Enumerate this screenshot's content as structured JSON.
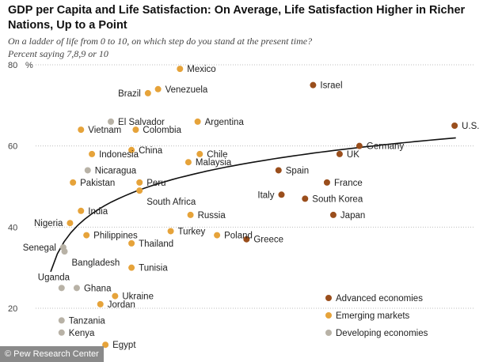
{
  "header": {
    "title": "GDP per Capita and Life Satisfaction: On Average, Life Satisfaction Higher in Richer Nations, Up to a Point",
    "subtitle": "On a ladder of life from 0 to 10, on which step do you stand at the present time? Percent saying 7,8,9 or 10"
  },
  "source": "© Pew Research Center",
  "colors": {
    "advanced": "#9a4e1c",
    "emerging": "#e6a33a",
    "developing": "#b8b2a6",
    "gridline": "#bdbdbd",
    "trendline": "#111111"
  },
  "chart_data": {
    "type": "scatter",
    "title": "GDP per Capita and Life Satisfaction: On Average, Life Satisfaction Higher in Richer Nations, Up to a Point",
    "ylabel": "On a ladder of life from 0 to 10, on which step do you stand at the present time? Percent saying 7,8,9 or 10",
    "y_unit": "%",
    "ylim": [
      16,
      82
    ],
    "y_ticks": [
      20,
      40,
      60,
      80
    ],
    "x_axis_shown": false,
    "x_scale": "log",
    "x_note": "GDP per capita; horizontal position read as relative share of axis width (0 = left, 1 = right), axis not labeled",
    "grid": "horizontal dotted",
    "legend_position": "bottom-right",
    "legend": [
      {
        "group": "advanced",
        "label": "Advanced economies"
      },
      {
        "group": "emerging",
        "label": "Emerging markets"
      },
      {
        "group": "developing",
        "label": "Developing economies"
      }
    ],
    "points": [
      {
        "country": "Mexico",
        "x": 0.337,
        "y": 79,
        "group": "emerging",
        "label_side": "right"
      },
      {
        "country": "Venezuela",
        "x": 0.285,
        "y": 74,
        "group": "emerging",
        "label_side": "right"
      },
      {
        "country": "Brazil",
        "x": 0.261,
        "y": 73,
        "group": "emerging",
        "label_side": "left"
      },
      {
        "country": "Israel",
        "x": 0.653,
        "y": 75,
        "group": "advanced",
        "label_side": "right"
      },
      {
        "country": "El Salvador",
        "x": 0.173,
        "y": 66,
        "group": "developing",
        "label_side": "right"
      },
      {
        "country": "Argentina",
        "x": 0.379,
        "y": 66,
        "group": "emerging",
        "label_side": "right"
      },
      {
        "country": "Vietnam",
        "x": 0.102,
        "y": 64,
        "group": "emerging",
        "label_side": "right"
      },
      {
        "country": "Colombia",
        "x": 0.232,
        "y": 64,
        "group": "emerging",
        "label_side": "right"
      },
      {
        "country": "U.S.",
        "x": 0.989,
        "y": 65,
        "group": "advanced",
        "label_side": "right"
      },
      {
        "country": "China",
        "x": 0.222,
        "y": 59,
        "group": "emerging",
        "label_side": "right"
      },
      {
        "country": "Germany",
        "x": 0.763,
        "y": 60,
        "group": "advanced",
        "label_side": "right"
      },
      {
        "country": "Indonesia",
        "x": 0.128,
        "y": 58,
        "group": "emerging",
        "label_side": "right"
      },
      {
        "country": "Chile",
        "x": 0.384,
        "y": 58,
        "group": "emerging",
        "label_side": "right"
      },
      {
        "country": "UK",
        "x": 0.716,
        "y": 58,
        "group": "advanced",
        "label_side": "right"
      },
      {
        "country": "Malaysia",
        "x": 0.357,
        "y": 56,
        "group": "emerging",
        "label_side": "right"
      },
      {
        "country": "Nicaragua",
        "x": 0.118,
        "y": 54,
        "group": "developing",
        "label_side": "right"
      },
      {
        "country": "Spain",
        "x": 0.571,
        "y": 54,
        "group": "advanced",
        "label_side": "right"
      },
      {
        "country": "Pakistan",
        "x": 0.083,
        "y": 51,
        "group": "emerging",
        "label_side": "right"
      },
      {
        "country": "Peru",
        "x": 0.241,
        "y": 51,
        "group": "emerging",
        "label_side": "right"
      },
      {
        "country": "France",
        "x": 0.686,
        "y": 51,
        "group": "advanced",
        "label_side": "right"
      },
      {
        "country": "South Africa",
        "x": 0.241,
        "y": 49,
        "group": "emerging",
        "label_side": "below"
      },
      {
        "country": "Italy",
        "x": 0.578,
        "y": 48,
        "group": "advanced",
        "label_side": "left"
      },
      {
        "country": "South Korea",
        "x": 0.634,
        "y": 47,
        "group": "advanced",
        "label_side": "right"
      },
      {
        "country": "India",
        "x": 0.102,
        "y": 44,
        "group": "emerging",
        "label_side": "right"
      },
      {
        "country": "Russia",
        "x": 0.362,
        "y": 43,
        "group": "emerging",
        "label_side": "right"
      },
      {
        "country": "Japan",
        "x": 0.701,
        "y": 43,
        "group": "advanced",
        "label_side": "right"
      },
      {
        "country": "Nigeria",
        "x": 0.076,
        "y": 41,
        "group": "emerging",
        "label_side": "left"
      },
      {
        "country": "Turkey",
        "x": 0.315,
        "y": 39,
        "group": "emerging",
        "label_side": "right"
      },
      {
        "country": "Poland",
        "x": 0.425,
        "y": 38,
        "group": "emerging",
        "label_side": "right"
      },
      {
        "country": "Greece",
        "x": 0.495,
        "y": 37,
        "group": "advanced",
        "label_side": "right"
      },
      {
        "country": "Senegal",
        "x": 0.06,
        "y": 35,
        "group": "developing",
        "label_side": "left"
      },
      {
        "country": "Philippines",
        "x": 0.115,
        "y": 38,
        "group": "emerging",
        "label_side": "right"
      },
      {
        "country": "Bangladesh",
        "x": 0.063,
        "y": 34,
        "group": "developing",
        "label_side": "below"
      },
      {
        "country": "Thailand",
        "x": 0.222,
        "y": 36,
        "group": "emerging",
        "label_side": "right"
      },
      {
        "country": "Tunisia",
        "x": 0.222,
        "y": 30,
        "group": "emerging",
        "label_side": "right"
      },
      {
        "country": "Uganda",
        "x": 0.056,
        "y": 25,
        "group": "developing",
        "label_side": "above"
      },
      {
        "country": "Ghana",
        "x": 0.092,
        "y": 25,
        "group": "developing",
        "label_side": "right"
      },
      {
        "country": "Ukraine",
        "x": 0.183,
        "y": 23,
        "group": "emerging",
        "label_side": "right"
      },
      {
        "country": "Jordan",
        "x": 0.148,
        "y": 21,
        "group": "emerging",
        "label_side": "right"
      },
      {
        "country": "Tanzania",
        "x": 0.056,
        "y": 17,
        "group": "developing",
        "label_side": "right"
      },
      {
        "country": "Kenya",
        "x": 0.056,
        "y": 14,
        "group": "developing",
        "label_side": "right"
      },
      {
        "country": "Egypt",
        "x": 0.16,
        "y": 11,
        "group": "emerging",
        "label_side": "right"
      }
    ],
    "trendline": {
      "type": "logarithmic",
      "x_start": 0.03,
      "x_end": 0.992,
      "y_start": 29,
      "y_end": 62
    }
  }
}
